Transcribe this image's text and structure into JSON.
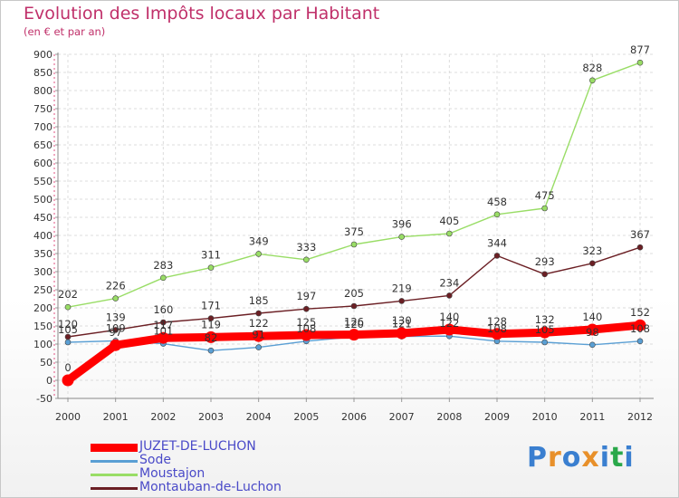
{
  "header": {
    "title": "Evolution des Impôts locaux par Habitant",
    "subtitle": "(en € et par an)"
  },
  "chart_data": {
    "type": "line",
    "title": "Evolution des Impôts locaux par Habitant",
    "subtitle": "(en € et par an)",
    "xlabel": "",
    "ylabel": "",
    "ylim": [
      -50,
      900
    ],
    "yticks": [
      -50,
      0,
      50,
      100,
      150,
      200,
      250,
      300,
      350,
      400,
      450,
      500,
      550,
      600,
      650,
      700,
      750,
      800,
      850,
      900
    ],
    "x": [
      "2000",
      "2001",
      "2002",
      "2003",
      "2004",
      "2005",
      "2006",
      "2007",
      "2008",
      "2009",
      "2010",
      "2011",
      "2012"
    ],
    "grid": true,
    "legend_position": "bottom-left",
    "series": [
      {
        "name": "JUZET-DE-LUCHON",
        "color": "#ff0000",
        "values": [
          0,
          97,
          117,
          119,
          122,
          125,
          126,
          130,
          140,
          128,
          132,
          140,
          152
        ],
        "labels": [
          "0",
          "97",
          "117",
          "119",
          "122",
          "125",
          "126",
          "130",
          "140",
          "128",
          "132",
          "140",
          "152"
        ]
      },
      {
        "name": "Sode",
        "color": "#5a9fd4",
        "values": [
          105,
          109,
          101,
          82,
          91,
          108,
          120,
          121,
          122,
          108,
          105,
          98,
          108
        ],
        "labels": [
          "105",
          "109",
          "101",
          "82",
          "91",
          "108",
          "120",
          "121",
          "122",
          "108",
          "105",
          "98",
          "108"
        ]
      },
      {
        "name": "Moustajon",
        "color": "#99dd66",
        "values": [
          202,
          226,
          283,
          311,
          349,
          333,
          375,
          396,
          405,
          458,
          475,
          828,
          877
        ],
        "labels": [
          "202",
          "226",
          "283",
          "311",
          "349",
          "333",
          "375",
          "396",
          "405",
          "458",
          "475",
          "828",
          "877"
        ]
      },
      {
        "name": "Montauban-de-Luchon",
        "color": "#6b1f24",
        "values": [
          120,
          139,
          160,
          171,
          185,
          197,
          205,
          219,
          234,
          344,
          293,
          323,
          367
        ],
        "labels": [
          "120",
          "139",
          "160",
          "171",
          "185",
          "197",
          "205",
          "219",
          "234",
          "344",
          "293",
          "323",
          "367"
        ]
      }
    ]
  },
  "logo": {
    "letters": [
      "P",
      "r",
      "o",
      "x",
      "i",
      "t",
      "i"
    ],
    "colors": [
      "#3a7fd0",
      "#e8902a",
      "#3a7fd0",
      "#e8902a",
      "#3a7fd0",
      "#2aa84a",
      "#3a7fd0"
    ]
  }
}
